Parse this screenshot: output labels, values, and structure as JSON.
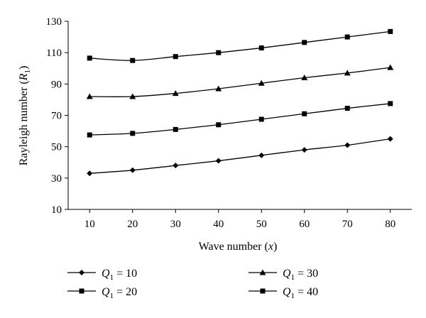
{
  "chart_data": {
    "type": "line",
    "x": [
      10,
      20,
      30,
      40,
      50,
      60,
      70,
      80
    ],
    "xlim": [
      5,
      85
    ],
    "ylim": [
      10,
      130
    ],
    "xticks": [
      10,
      20,
      30,
      40,
      50,
      60,
      70,
      80
    ],
    "yticks": [
      10,
      30,
      50,
      70,
      90,
      110,
      130
    ],
    "xlabel": "Wave number (x)",
    "ylabel": "Rayleigh number (R1)",
    "grid": false,
    "legend_position": "bottom",
    "series": [
      {
        "name": "Q1 = 10",
        "marker": "diamond",
        "values": [
          33,
          35,
          38,
          41,
          44.5,
          48,
          51,
          55
        ]
      },
      {
        "name": "Q1 = 20",
        "marker": "square",
        "values": [
          57.5,
          58.5,
          61,
          64,
          67.5,
          71,
          74.5,
          77.5
        ]
      },
      {
        "name": "Q1 = 30",
        "marker": "triangle",
        "values": [
          82,
          82,
          84,
          87,
          90.5,
          94,
          97,
          100.5
        ]
      },
      {
        "name": "Q1 = 40",
        "marker": "square",
        "values": [
          106.5,
          105,
          107.5,
          110,
          113,
          116.5,
          120,
          123.5
        ]
      }
    ],
    "line_color": "#000000"
  }
}
